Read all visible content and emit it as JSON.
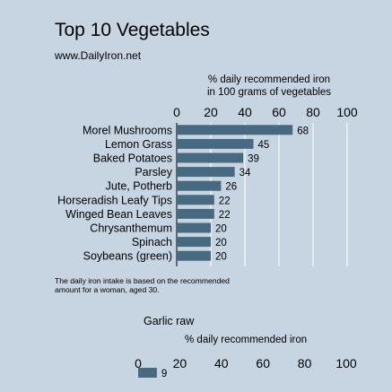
{
  "title": "Top 10 Vegetables",
  "subtitle": "www.DailyIron.net",
  "footnote": [
    "The daily iron intake is based on the recommended",
    "amount for a woman, aged 30."
  ],
  "colors": {
    "background": "#c7d4e1",
    "bar": "#476a80",
    "gridline": "#ffffff"
  },
  "chart_data": [
    {
      "type": "bar",
      "orientation": "horizontal",
      "title": "",
      "xlabel": [
        "% daily recommended iron",
        "in 100 grams of vegetables"
      ],
      "xlim": [
        0,
        100
      ],
      "xticks": [
        0,
        20,
        40,
        60,
        80,
        100
      ],
      "categories": [
        "Morel Mushrooms",
        "Lemon Grass",
        "Baked Potatoes",
        "Parsley",
        "Jute, Potherb",
        "Horseradish Leafy Tips",
        "Winged Bean Leaves",
        "Chrysanthemum",
        "Spinach",
        "Soybeans (green)"
      ],
      "values": [
        68,
        45,
        39,
        34,
        26,
        22,
        22,
        20,
        20,
        20
      ],
      "grid": true
    },
    {
      "type": "bar",
      "orientation": "horizontal",
      "title": "Garlic raw",
      "xlabel": "% daily recommended iron",
      "xlim": [
        0,
        100
      ],
      "xticks": [
        0,
        20,
        40,
        60,
        80,
        100
      ],
      "values": [
        9
      ],
      "grid": false
    }
  ]
}
